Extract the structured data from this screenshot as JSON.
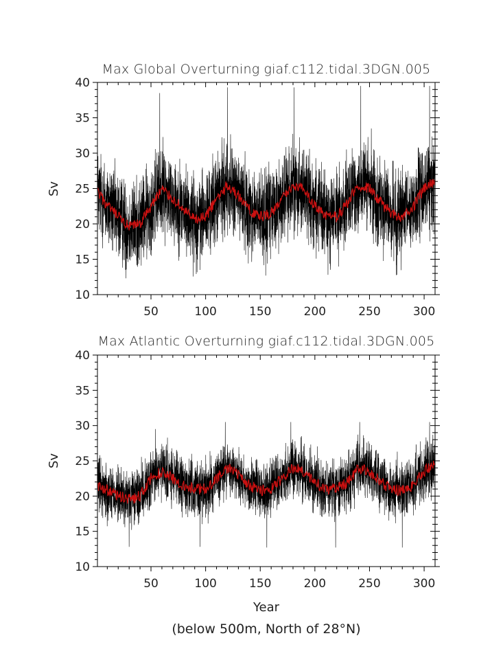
{
  "figure": {
    "caption": "(below 500m, North of 28°N)"
  },
  "chart_data": [
    {
      "type": "line",
      "title": "Max Global Overturning giaf.c112.tidal.3DGN.005",
      "xlabel": "",
      "ylabel": "Sv",
      "xlim": [
        1,
        310
      ],
      "ylim": [
        10,
        40
      ],
      "x_ticks": [
        50,
        100,
        150,
        200,
        250,
        300
      ],
      "y_ticks": [
        10,
        15,
        20,
        25,
        30,
        35,
        40
      ],
      "grid": false,
      "colors": {
        "raw": "#000000",
        "smoothed": "#cc1111"
      },
      "x_start": 1,
      "x_end": 310,
      "raw_noise_amplitude": 3.8,
      "spikes": [
        [
          58,
          38.5
        ],
        [
          120,
          39.3
        ],
        [
          181,
          39.3
        ],
        [
          242,
          39.5
        ],
        [
          305,
          39.5
        ],
        [
          27,
          12.3
        ],
        [
          155,
          12.7
        ],
        [
          212,
          12.8
        ],
        [
          275,
          12.8
        ],
        [
          95,
          13.5
        ]
      ],
      "series": [
        {
          "x": [
            1,
            10,
            20,
            30,
            40,
            50,
            60,
            70,
            80,
            90,
            100,
            110,
            120,
            130,
            140,
            150,
            160,
            170,
            180,
            190,
            200,
            210,
            220,
            230,
            240,
            250,
            260,
            270,
            280,
            290,
            300,
            310
          ],
          "y": [
            24.5,
            22.5,
            21.0,
            19.5,
            20.0,
            22.5,
            25.0,
            23.5,
            22.0,
            20.5,
            21.0,
            23.5,
            25.5,
            24.0,
            22.0,
            21.0,
            21.5,
            23.5,
            25.5,
            25.0,
            22.5,
            21.0,
            21.0,
            23.0,
            25.5,
            25.0,
            23.0,
            21.5,
            21.0,
            22.5,
            25.0,
            26.0
          ]
        }
      ]
    },
    {
      "type": "line",
      "title": "Max Atlantic Overturning giaf.c112.tidal.3DGN.005",
      "xlabel": "Year",
      "ylabel": "Sv",
      "xlim": [
        1,
        310
      ],
      "ylim": [
        10,
        40
      ],
      "x_ticks": [
        50,
        100,
        150,
        200,
        250,
        300
      ],
      "y_ticks": [
        10,
        15,
        20,
        25,
        30,
        35,
        40
      ],
      "grid": false,
      "colors": {
        "raw": "#000000",
        "smoothed": "#cc1111"
      },
      "x_start": 1,
      "x_end": 310,
      "raw_noise_amplitude": 2.4,
      "spikes": [
        [
          54,
          29.5
        ],
        [
          118,
          30.5
        ],
        [
          178,
          30.5
        ],
        [
          241,
          30.5
        ],
        [
          305,
          30.5
        ],
        [
          30,
          12.8
        ],
        [
          95,
          12.8
        ],
        [
          156,
          12.7
        ],
        [
          219,
          12.7
        ],
        [
          280,
          12.7
        ]
      ],
      "series": [
        {
          "x": [
            1,
            10,
            20,
            30,
            40,
            50,
            60,
            70,
            80,
            90,
            100,
            110,
            120,
            130,
            140,
            150,
            160,
            170,
            180,
            190,
            200,
            210,
            220,
            230,
            240,
            250,
            260,
            270,
            280,
            290,
            300,
            310
          ],
          "y": [
            21.5,
            20.8,
            20.0,
            19.5,
            20.0,
            22.5,
            23.5,
            22.5,
            21.5,
            21.0,
            21.0,
            22.5,
            24.0,
            23.0,
            21.5,
            20.8,
            21.0,
            22.5,
            24.0,
            23.5,
            22.0,
            21.0,
            21.0,
            22.0,
            24.0,
            23.5,
            22.0,
            21.0,
            20.8,
            21.5,
            23.5,
            24.5
          ]
        }
      ]
    }
  ]
}
